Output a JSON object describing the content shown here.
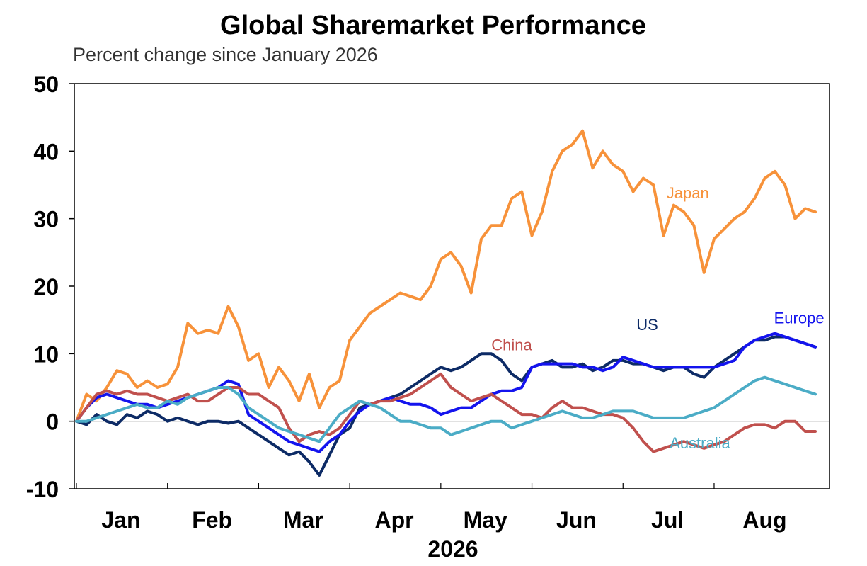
{
  "chart_data": {
    "type": "line",
    "title": "Global Sharemarket Performance",
    "subtitle": "Percent change since January 2026",
    "xlabel": "2026",
    "ylabel": "",
    "ylim": [
      -10,
      50
    ],
    "yticks": [
      "50",
      "40",
      "30",
      "20",
      "10",
      "0",
      "-10"
    ],
    "ytick_values": [
      50,
      40,
      30,
      20,
      10,
      0,
      -10
    ],
    "months": [
      "Jan",
      "Feb",
      "Mar",
      "Apr",
      "May",
      "Jun",
      "Jul",
      "Aug"
    ],
    "x_axis_note": "x values are approximate week numbers from the start of January 2026 (1 tick per month boundary)",
    "month_boundaries": [
      0,
      4.5,
      9,
      13.5,
      18,
      22.5,
      27,
      31.5
    ],
    "month_label_centers": [
      2.2,
      6.7,
      11.2,
      15.7,
      20.2,
      24.7,
      29.2,
      34
    ],
    "zero_line": true,
    "grid": false,
    "series": [
      {
        "name": "Japan",
        "color": "#F7923A",
        "label_anchor_x": 30.2,
        "label_anchor_y": 33,
        "x": [
          0,
          0.5,
          1,
          1.5,
          2,
          2.5,
          3,
          3.5,
          4,
          4.5,
          5,
          5.5,
          6,
          6.5,
          7,
          7.5,
          8,
          8.5,
          9,
          9.5,
          10,
          10.5,
          11,
          11.5,
          12,
          12.5,
          13,
          13.5,
          14,
          14.5,
          15,
          15.5,
          16,
          16.5,
          17,
          17.5,
          18,
          18.5,
          19,
          19.5,
          20,
          20.5,
          21,
          21.5,
          22,
          22.5,
          23,
          23.5,
          24,
          24.5,
          25,
          25.5,
          26,
          26.5,
          27,
          27.5,
          28,
          28.5,
          29,
          29.5,
          30,
          30.5,
          31,
          31.5,
          32,
          32.5,
          33,
          33.5,
          34,
          34.5,
          35,
          35.5,
          36,
          36.5
        ],
        "values": [
          0,
          4,
          3,
          5,
          7.5,
          7,
          5,
          6,
          5,
          5.5,
          8,
          14.5,
          13,
          13.5,
          13,
          17,
          14,
          9,
          10,
          5,
          8,
          6,
          3,
          7,
          2,
          5,
          6,
          12,
          14,
          16,
          17,
          18,
          19,
          18.5,
          18,
          20,
          24,
          25,
          23,
          19,
          27,
          29,
          29,
          33,
          34,
          27.5,
          31,
          37,
          40,
          41,
          43,
          37.5,
          40,
          38,
          37,
          34,
          36,
          35,
          27.5,
          32,
          31,
          29,
          22,
          27,
          28.5,
          30,
          31,
          33,
          36,
          37,
          35,
          30,
          31.5,
          31
        ]
      },
      {
        "name": "US",
        "color": "#0D2B66",
        "label_anchor_x": 28.2,
        "label_anchor_y": 13.5,
        "x": [
          0,
          0.5,
          1,
          1.5,
          2,
          2.5,
          3,
          3.5,
          4,
          4.5,
          5,
          5.5,
          6,
          6.5,
          7,
          7.5,
          8,
          8.5,
          9,
          9.5,
          10,
          10.5,
          11,
          11.5,
          12,
          12.5,
          13,
          13.5,
          14,
          14.5,
          15,
          15.5,
          16,
          16.5,
          17,
          17.5,
          18,
          18.5,
          19,
          19.5,
          20,
          20.5,
          21,
          21.5,
          22,
          22.5,
          23,
          23.5,
          24,
          24.5,
          25,
          25.5,
          26,
          26.5,
          27,
          27.5,
          28,
          28.5,
          29,
          29.5,
          30,
          30.5,
          31,
          31.5,
          32,
          32.5,
          33,
          33.5,
          34,
          34.5,
          35,
          35.5,
          36,
          36.5
        ],
        "values": [
          0,
          -0.5,
          1,
          0,
          -0.5,
          1,
          0.5,
          1.5,
          1,
          0,
          0.5,
          0,
          -0.5,
          0,
          0,
          -0.3,
          0,
          -1,
          -2,
          -3,
          -4,
          -5,
          -4.5,
          -6,
          -8,
          -5,
          -2,
          -1,
          2,
          2.5,
          3,
          3.5,
          4,
          5,
          6,
          7,
          8,
          7.5,
          8,
          9,
          10,
          10,
          9,
          7,
          6,
          8,
          8.5,
          9,
          8,
          8,
          8.5,
          7.5,
          8,
          9,
          9,
          8.5,
          8.5,
          8,
          7.5,
          8,
          8,
          7,
          6.5,
          8,
          9,
          10,
          11,
          12,
          12,
          12.5,
          12.5,
          12,
          11.5,
          11
        ]
      },
      {
        "name": "Europe",
        "color": "#1414EE",
        "label_anchor_x": 35.7,
        "label_anchor_y": 14.5,
        "x": [
          0,
          0.5,
          1,
          1.5,
          2,
          2.5,
          3,
          3.5,
          4,
          4.5,
          5,
          5.5,
          6,
          6.5,
          7,
          7.5,
          8,
          8.5,
          9,
          9.5,
          10,
          10.5,
          11,
          11.5,
          12,
          12.5,
          13,
          13.5,
          14,
          14.5,
          15,
          15.5,
          16,
          16.5,
          17,
          17.5,
          18,
          18.5,
          19,
          19.5,
          20,
          20.5,
          21,
          21.5,
          22,
          22.5,
          23,
          23.5,
          24,
          24.5,
          25,
          25.5,
          26,
          26.5,
          27,
          27.5,
          28,
          28.5,
          29,
          29.5,
          30,
          30.5,
          31,
          31.5,
          32,
          32.5,
          33,
          33.5,
          34,
          34.5,
          35,
          35.5,
          36,
          36.5
        ],
        "values": [
          0,
          2,
          3.5,
          4,
          3.5,
          3,
          2.5,
          2.5,
          2,
          2.5,
          3,
          3.5,
          4,
          4.5,
          5,
          6,
          5.5,
          1,
          0,
          -1,
          -2,
          -3,
          -3.5,
          -4,
          -4.5,
          -3,
          -2,
          0,
          1.5,
          2.5,
          3,
          3.5,
          3,
          2.5,
          2.5,
          2,
          1,
          1.5,
          2,
          2,
          3,
          4,
          4.5,
          4.5,
          5,
          8,
          8.5,
          8.5,
          8.5,
          8.5,
          8,
          8,
          7.5,
          8,
          9.5,
          9,
          8.5,
          8,
          8,
          8,
          8,
          8,
          8,
          8,
          8.5,
          9,
          11,
          12,
          12.5,
          13,
          12.5,
          12,
          11.5,
          11
        ]
      },
      {
        "name": "China",
        "color": "#C0504D",
        "label_anchor_x": 21.5,
        "label_anchor_y": 10.5,
        "x": [
          0,
          0.5,
          1,
          1.5,
          2,
          2.5,
          3,
          3.5,
          4,
          4.5,
          5,
          5.5,
          6,
          6.5,
          7,
          7.5,
          8,
          8.5,
          9,
          9.5,
          10,
          10.5,
          11,
          11.5,
          12,
          12.5,
          13,
          13.5,
          14,
          14.5,
          15,
          15.5,
          16,
          16.5,
          17,
          17.5,
          18,
          18.5,
          19,
          19.5,
          20,
          20.5,
          21,
          21.5,
          22,
          22.5,
          23,
          23.5,
          24,
          24.5,
          25,
          25.5,
          26,
          26.5,
          27,
          27.5,
          28,
          28.5,
          29,
          29.5,
          30,
          30.5,
          31,
          31.5,
          32,
          32.5,
          33,
          33.5,
          34,
          34.5,
          35,
          35.5,
          36,
          36.5
        ],
        "values": [
          0,
          2,
          4,
          4.5,
          4,
          4.5,
          4,
          4,
          3.5,
          3,
          3.5,
          4,
          3,
          3,
          4,
          5,
          5,
          4,
          4,
          3,
          2,
          -1,
          -3,
          -2,
          -1.5,
          -2,
          -1,
          1,
          3,
          2.5,
          3,
          3,
          3.5,
          4,
          5,
          6,
          7,
          5,
          4,
          3,
          3.5,
          4,
          3,
          2,
          1,
          1,
          0.5,
          2,
          3,
          2,
          2,
          1.5,
          1,
          1,
          0.5,
          -1,
          -3,
          -4.5,
          -4,
          -3.5,
          -3,
          -3.5,
          -4,
          -3.5,
          -3,
          -2,
          -1,
          -0.5,
          -0.5,
          -1,
          0,
          0,
          -1.5,
          -1.5
        ]
      },
      {
        "name": "Australia",
        "color": "#4BACC6",
        "label_anchor_x": 30.8,
        "label_anchor_y": -4,
        "x": [
          0,
          0.5,
          1,
          1.5,
          2,
          2.5,
          3,
          3.5,
          4,
          4.5,
          5,
          5.5,
          6,
          6.5,
          7,
          7.5,
          8,
          8.5,
          9,
          9.5,
          10,
          10.5,
          11,
          11.5,
          12,
          12.5,
          13,
          13.5,
          14,
          14.5,
          15,
          15.5,
          16,
          16.5,
          17,
          17.5,
          18,
          18.5,
          19,
          19.5,
          20,
          20.5,
          21,
          21.5,
          22,
          22.5,
          23,
          23.5,
          24,
          24.5,
          25,
          25.5,
          26,
          26.5,
          27,
          27.5,
          28,
          28.5,
          29,
          29.5,
          30,
          30.5,
          31,
          31.5,
          32,
          32.5,
          33,
          33.5,
          34,
          34.5,
          35,
          35.5,
          36,
          36.5
        ],
        "values": [
          0,
          0,
          0.5,
          1,
          1.5,
          2,
          2.5,
          2,
          2,
          3,
          2.5,
          3.5,
          4,
          4.5,
          5,
          5,
          4,
          2,
          1,
          0,
          -1,
          -1.5,
          -2,
          -2.5,
          -3,
          -1,
          1,
          2,
          3,
          2.5,
          2,
          1,
          0,
          0,
          -0.5,
          -1,
          -1,
          -2,
          -1.5,
          -1,
          -0.5,
          0,
          0,
          -1,
          -0.5,
          0,
          0.5,
          1,
          1.5,
          1,
          0.5,
          0.5,
          1,
          1.5,
          1.5,
          1.5,
          1,
          0.5,
          0.5,
          0.5,
          0.5,
          1,
          1.5,
          2,
          3,
          4,
          5,
          6,
          6.5,
          6,
          5.5,
          5,
          4.5,
          4
        ]
      }
    ]
  }
}
